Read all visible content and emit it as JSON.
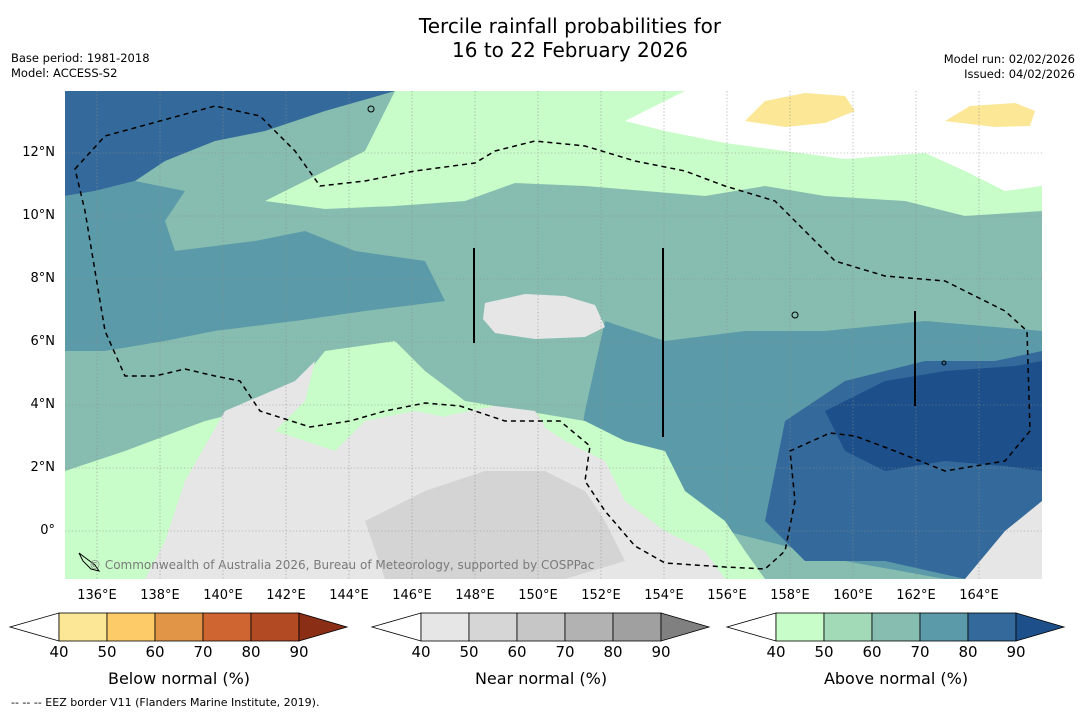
{
  "title": {
    "line1": "Tercile rainfall probabilities for",
    "line2": "16 to 22 February 2026"
  },
  "meta_left": {
    "base_period": "Base period: 1981-2018",
    "model": "Model: ACCESS-S2"
  },
  "meta_right": {
    "model_run": "Model run: 02/02/2026",
    "issued": "Issued: 04/02/2026"
  },
  "map": {
    "x_ticks": [
      "136°E",
      "138°E",
      "140°E",
      "142°E",
      "144°E",
      "146°E",
      "148°E",
      "150°E",
      "152°E",
      "154°E",
      "156°E",
      "158°E",
      "160°E",
      "162°E",
      "164°E"
    ],
    "y_ticks": [
      "12°N",
      "10°N",
      "8°N",
      "6°N",
      "4°N",
      "2°N",
      "0°"
    ],
    "copyright": "© Commonwealth of Australia 2026, Bureau of Meteorology, supported by COSPPac",
    "colors": {
      "above_40": "#c8fcc8",
      "above_50": "#a2d9b6",
      "above_60": "#87bdb0",
      "above_70": "#5b9aa8",
      "above_80": "#346a9b",
      "above_90": "#1d4f8a",
      "near_40": "#e6e6e6",
      "near_50": "#d4d4d4",
      "below_40": "#fbe796"
    }
  },
  "colorbars": [
    {
      "label": "Below normal (%)",
      "ticks": [
        "40",
        "50",
        "60",
        "70",
        "80",
        "90"
      ],
      "colors": [
        "#fbe796",
        "#fdcb67",
        "#e19547",
        "#cf6531",
        "#b24a24",
        "#8a2e16"
      ]
    },
    {
      "label": "Near normal (%)",
      "ticks": [
        "40",
        "50",
        "60",
        "70",
        "80",
        "90"
      ],
      "colors": [
        "#e6e6e6",
        "#d6d6d6",
        "#c6c6c6",
        "#b2b2b2",
        "#a0a0a0",
        "#808080"
      ]
    },
    {
      "label": "Above normal (%)",
      "ticks": [
        "40",
        "50",
        "60",
        "70",
        "80",
        "90"
      ],
      "colors": [
        "#c8fcc8",
        "#a2d9b6",
        "#87bdb0",
        "#5b9aa8",
        "#346a9b",
        "#1d4f8a"
      ]
    }
  ],
  "footer": "--  --  -- EEZ border V11 (Flanders Marine Institute, 2019)."
}
